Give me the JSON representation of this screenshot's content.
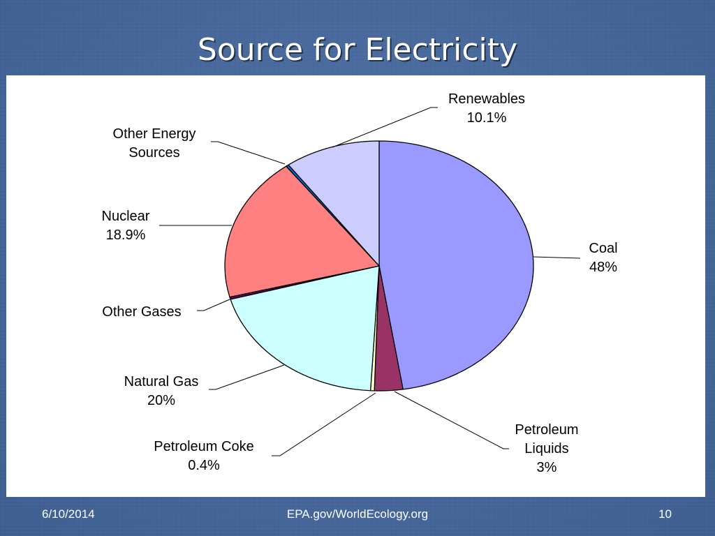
{
  "slide": {
    "title": "Source for Electricity",
    "footer_date": "6/10/2014",
    "footer_source": "EPA.gov/WorldEcology.org",
    "slide_number": "10"
  },
  "chart_data": {
    "type": "pie",
    "slices": [
      {
        "name": "Coal",
        "value": 48,
        "label_lines": [
          "Coal",
          "48%"
        ],
        "color": "#9999ff"
      },
      {
        "name": "Petroleum Liquids",
        "value": 3,
        "label_lines": [
          "Petroleum",
          "Liquids",
          "3%"
        ],
        "color": "#993366"
      },
      {
        "name": "Petroleum Coke",
        "value": 0.4,
        "label_lines": [
          "Petroleum Coke",
          "0.4%"
        ],
        "color": "#ffffcc"
      },
      {
        "name": "Natural Gas",
        "value": 20,
        "label_lines": [
          "Natural Gas",
          "20%"
        ],
        "color": "#ccffff"
      },
      {
        "name": "Other Gases",
        "value": 0.3,
        "label_lines": [
          "Other Gases"
        ],
        "color": "#660066"
      },
      {
        "name": "Nuclear",
        "value": 18.9,
        "label_lines": [
          "Nuclear",
          "18.9%"
        ],
        "color": "#ff8080"
      },
      {
        "name": "Other Energy Sources",
        "value": 0.3,
        "label_lines": [
          "Other Energy",
          "Sources"
        ],
        "color": "#0066cc"
      },
      {
        "name": "Renewables",
        "value": 10.1,
        "label_lines": [
          "Renewables",
          "10.1%"
        ],
        "color": "#ccccff"
      }
    ]
  }
}
